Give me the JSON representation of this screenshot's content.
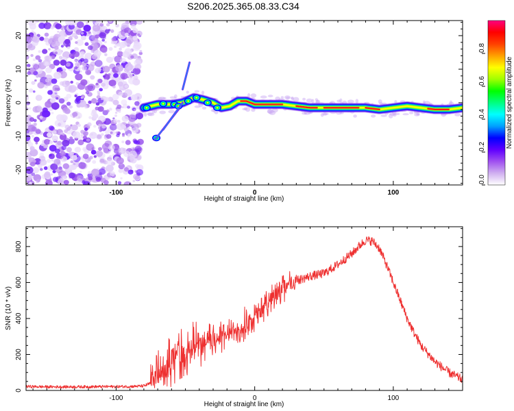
{
  "title": "S206.2025.365.08.33.C34",
  "chart_data": [
    {
      "type": "heatmap",
      "title": "S206.2025.365.08.33.C34",
      "xlabel": "Height of straight line (km)",
      "ylabel": "Frequency (Hz)",
      "xlim": [
        -165,
        150
      ],
      "ylim": [
        -24.5,
        24.5
      ],
      "xticks": [
        -100,
        0,
        100
      ],
      "xtick_labels": [
        "-100",
        "0",
        "100"
      ],
      "yticks": [
        -20,
        -10,
        0,
        10,
        20
      ],
      "ytick_labels": [
        "-20",
        "-10",
        "0",
        "10",
        "20"
      ],
      "noise_region_x": [
        -165,
        -82
      ],
      "ridge": {
        "description": "Doppler frequency ridge",
        "x": [
          -80,
          -70,
          -60,
          -52,
          -44,
          -38,
          -30,
          -24,
          -18,
          -12,
          -6,
          0,
          10,
          20,
          30,
          40,
          50,
          60,
          70,
          80,
          90,
          100,
          110,
          120,
          130,
          140,
          150
        ],
        "y": [
          -1.5,
          -0.5,
          -0.5,
          0,
          1.5,
          1,
          0,
          -1.5,
          -1,
          0.5,
          0.5,
          -0.5,
          -0.5,
          -0.5,
          -1,
          -1.5,
          -1.5,
          -1.5,
          -1.5,
          -1.5,
          -2,
          -1.5,
          -1,
          -1.5,
          -2,
          -2,
          -1.5
        ]
      },
      "colorbar": {
        "label": "Normalized spectral amplitude",
        "ticks": [
          0.0,
          0.2,
          0.4,
          0.6,
          0.8
        ],
        "tick_labels": [
          "0.0",
          "0.2",
          "0.4",
          "0.6",
          "0.8"
        ],
        "range": [
          0,
          1
        ],
        "colors": [
          "#ffffff",
          "#d0b0f0",
          "#a050f0",
          "#6000ff",
          "#0000ff",
          "#00a0ff",
          "#00ffff",
          "#00ff80",
          "#00ff00",
          "#a0ff00",
          "#ffff00",
          "#ffa000",
          "#ff4000",
          "#ff0000",
          "#ff0080"
        ]
      }
    },
    {
      "type": "line",
      "xlabel": "Height of straight line (km)",
      "ylabel": "SNR (10 * v/v)",
      "xlim": [
        -165,
        150
      ],
      "ylim": [
        0,
        910
      ],
      "xticks": [
        -100,
        0,
        100
      ],
      "xtick_labels": [
        "-100",
        "0",
        "100"
      ],
      "yticks": [
        0,
        200,
        400,
        600,
        800
      ],
      "ytick_labels": [
        "0",
        "200",
        "400",
        "600",
        "800"
      ],
      "line_color": "#ee3030",
      "series": [
        {
          "name": "SNR",
          "x": [
            -165,
            -150,
            -130,
            -110,
            -90,
            -80,
            -75,
            -70,
            -65,
            -60,
            -55,
            -50,
            -45,
            -40,
            -35,
            -30,
            -25,
            -20,
            -15,
            -10,
            -5,
            0,
            5,
            10,
            20,
            30,
            40,
            50,
            60,
            70,
            75,
            80,
            85,
            90,
            95,
            100,
            105,
            110,
            115,
            120,
            130,
            140,
            150
          ],
          "values": [
            22,
            20,
            20,
            21,
            22,
            25,
            40,
            70,
            100,
            140,
            170,
            200,
            215,
            235,
            255,
            270,
            285,
            300,
            320,
            340,
            370,
            400,
            440,
            490,
            560,
            610,
            635,
            650,
            700,
            760,
            800,
            835,
            830,
            790,
            700,
            600,
            500,
            400,
            320,
            250,
            160,
            100,
            60
          ]
        }
      ],
      "noise_amplitude": [
        {
          "x_from": -165,
          "x_to": -80,
          "amp": 8
        },
        {
          "x_from": -75,
          "x_to": -30,
          "amp": 120
        },
        {
          "x_from": -30,
          "x_to": 30,
          "amp": 80
        },
        {
          "x_from": 30,
          "x_to": 150,
          "amp": 25
        }
      ]
    }
  ]
}
